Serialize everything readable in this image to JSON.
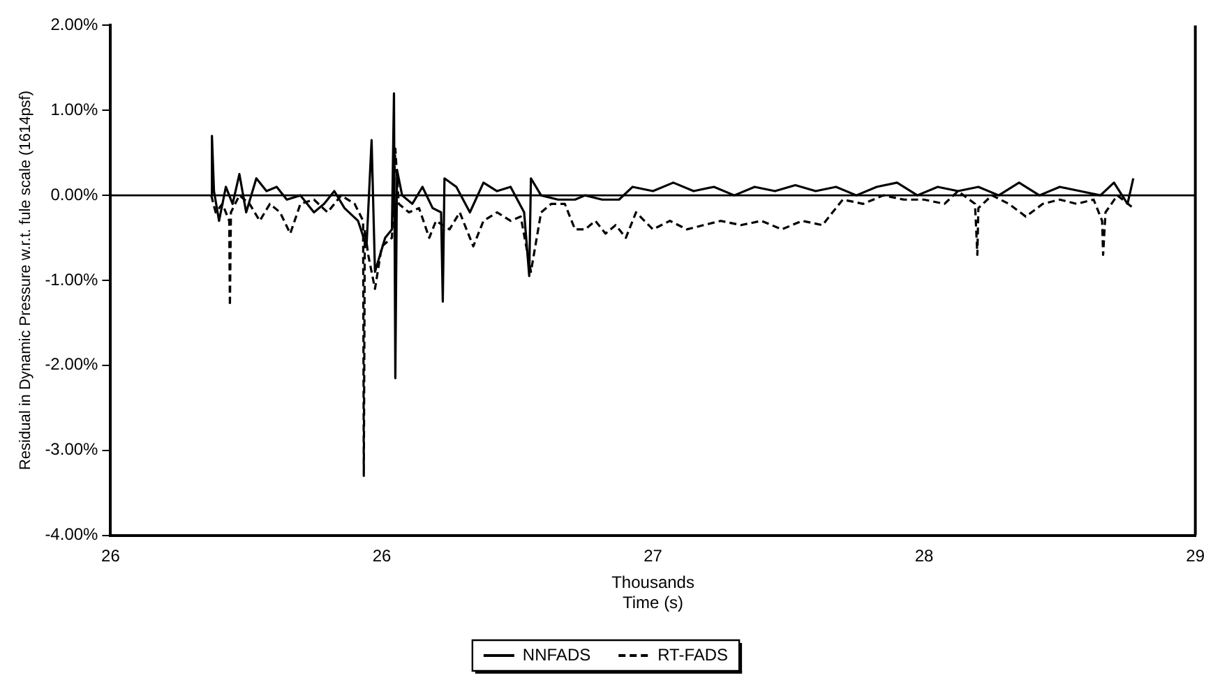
{
  "chart_data": {
    "type": "line",
    "xlabel": "Time (s)",
    "ylabel": "Residual in Dynamic Pressure w.r.t. fule scale (1614psf)",
    "annotations": [
      "Thousands"
    ],
    "xlim": [
      25.6,
      28.8
    ],
    "xticks": [
      {
        "value": 25.6,
        "label": "26"
      },
      {
        "value": 26.4,
        "label": "26"
      },
      {
        "value": 27.2,
        "label": "27"
      },
      {
        "value": 28.0,
        "label": "28"
      },
      {
        "value": 28.8,
        "label": "29"
      }
    ],
    "ylim": [
      -4,
      2
    ],
    "yticks": [
      {
        "value": 2,
        "label": "2.00%"
      },
      {
        "value": 1,
        "label": "1.00%"
      },
      {
        "value": 0,
        "label": "0.00%"
      },
      {
        "value": -1,
        "label": "-1.00%"
      },
      {
        "value": -2,
        "label": "-2.00%"
      },
      {
        "value": -3,
        "label": "-3.00%"
      },
      {
        "value": -4,
        "label": "-4.00%"
      }
    ],
    "grid": false,
    "legend": "bottom",
    "marker": "none",
    "ref_lines": [
      {
        "axis": "y",
        "value": 0,
        "color": "#000000"
      }
    ],
    "series": [
      {
        "name": "NNFADS",
        "color": "#000000",
        "line_style": "solid",
        "x": [
          25.897,
          25.899,
          25.905,
          25.92,
          25.94,
          25.96,
          25.98,
          26.0,
          26.03,
          26.06,
          26.09,
          26.12,
          26.16,
          26.2,
          26.23,
          26.26,
          26.29,
          26.33,
          26.355,
          26.37,
          26.38,
          26.395,
          26.41,
          26.43,
          26.436,
          26.44,
          26.445,
          26.46,
          26.49,
          26.52,
          26.55,
          26.575,
          26.58,
          26.585,
          26.62,
          26.66,
          26.7,
          26.74,
          26.78,
          26.82,
          26.835,
          26.84,
          26.87,
          26.92,
          26.97,
          27.0,
          27.05,
          27.1,
          27.14,
          27.2,
          27.26,
          27.32,
          27.38,
          27.44,
          27.5,
          27.56,
          27.62,
          27.68,
          27.74,
          27.8,
          27.86,
          27.92,
          27.98,
          28.04,
          28.1,
          28.16,
          28.22,
          28.28,
          28.34,
          28.4,
          28.46,
          28.52,
          28.56,
          28.6,
          28.617
        ],
        "values": [
          0.0,
          0.7,
          0.05,
          -0.3,
          0.1,
          -0.1,
          0.25,
          -0.2,
          0.2,
          0.05,
          0.1,
          -0.05,
          0.0,
          -0.2,
          -0.1,
          0.05,
          -0.15,
          -0.3,
          -0.6,
          0.65,
          -0.9,
          -0.7,
          -0.5,
          -0.4,
          1.2,
          -2.15,
          0.3,
          0.0,
          -0.1,
          0.1,
          -0.15,
          -0.2,
          -1.25,
          0.2,
          0.1,
          -0.2,
          0.15,
          0.05,
          0.1,
          -0.2,
          -0.95,
          0.2,
          0.0,
          -0.05,
          -0.05,
          0.0,
          -0.05,
          -0.05,
          0.1,
          0.05,
          0.15,
          0.05,
          0.1,
          0.0,
          0.1,
          0.05,
          0.12,
          0.05,
          0.1,
          0.0,
          0.1,
          0.15,
          0.0,
          0.1,
          0.05,
          0.1,
          0.0,
          0.15,
          0.0,
          0.1,
          0.05,
          0.0,
          0.15,
          -0.1,
          0.2
        ]
      },
      {
        "name": "RT-FADS",
        "color": "#000000",
        "line_style": "dashed",
        "x": [
          25.897,
          25.91,
          25.93,
          25.95,
          25.952,
          25.955,
          25.98,
          26.01,
          26.04,
          26.07,
          26.1,
          26.13,
          26.16,
          26.2,
          26.24,
          26.28,
          26.32,
          26.345,
          26.347,
          26.35,
          26.36,
          26.38,
          26.4,
          26.43,
          26.44,
          26.45,
          26.48,
          26.51,
          26.54,
          26.56,
          26.6,
          26.63,
          26.67,
          26.7,
          26.74,
          26.78,
          26.81,
          26.84,
          26.87,
          26.9,
          26.94,
          26.97,
          27.0,
          27.03,
          27.06,
          27.09,
          27.12,
          27.15,
          27.2,
          27.25,
          27.3,
          27.35,
          27.4,
          27.46,
          27.52,
          27.58,
          27.64,
          27.7,
          27.76,
          27.82,
          27.88,
          27.94,
          28.0,
          28.06,
          28.1,
          28.15,
          28.157,
          28.16,
          28.2,
          28.25,
          28.3,
          28.35,
          28.4,
          28.45,
          28.5,
          28.525,
          28.528,
          28.535,
          28.57,
          28.617
        ],
        "values": [
          0.0,
          -0.2,
          -0.1,
          -0.3,
          -1.3,
          -0.2,
          0.0,
          -0.1,
          -0.3,
          -0.1,
          -0.2,
          -0.45,
          -0.1,
          -0.05,
          -0.2,
          0.0,
          -0.1,
          -0.3,
          -3.3,
          -0.4,
          -0.7,
          -1.1,
          -0.6,
          -0.5,
          0.55,
          -0.1,
          -0.2,
          -0.15,
          -0.5,
          -0.3,
          -0.4,
          -0.2,
          -0.6,
          -0.3,
          -0.2,
          -0.3,
          -0.25,
          -0.9,
          -0.2,
          -0.1,
          -0.1,
          -0.4,
          -0.4,
          -0.3,
          -0.45,
          -0.35,
          -0.5,
          -0.2,
          -0.4,
          -0.3,
          -0.4,
          -0.35,
          -0.3,
          -0.35,
          -0.3,
          -0.4,
          -0.3,
          -0.35,
          -0.05,
          -0.1,
          0.0,
          -0.05,
          -0.05,
          -0.1,
          0.05,
          -0.1,
          -0.7,
          -0.15,
          0.0,
          -0.1,
          -0.25,
          -0.1,
          -0.05,
          -0.1,
          -0.05,
          -0.3,
          -0.7,
          -0.2,
          0.0,
          -0.15
        ]
      }
    ]
  }
}
